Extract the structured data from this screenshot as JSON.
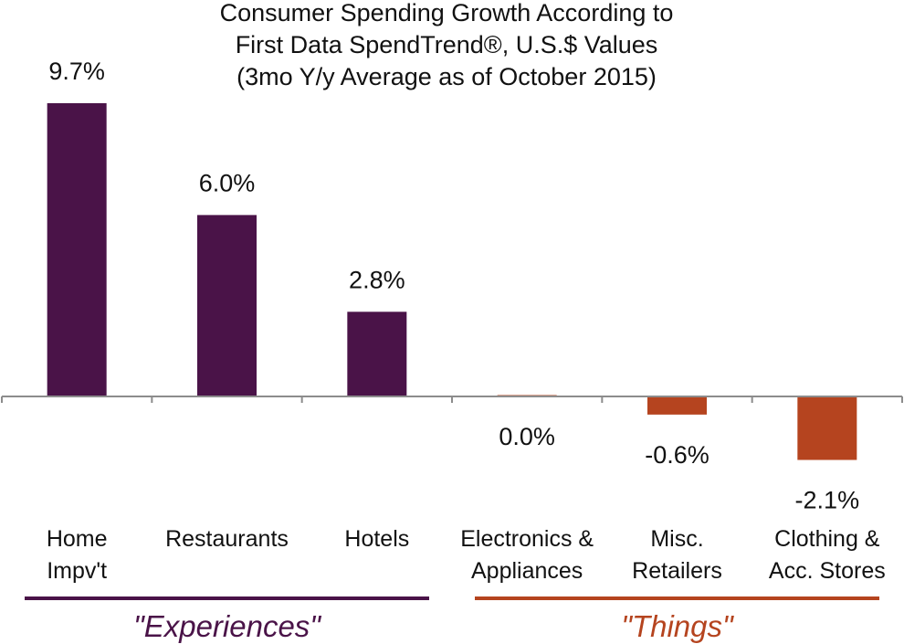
{
  "chart_data": {
    "type": "bar",
    "title_lines": [
      "Consumer Spending Growth According to",
      "First Data SpendTrend®, U.S.$ Values",
      "(3mo Y/y Average as of October 2015)"
    ],
    "categories": [
      [
        "Home",
        "Impv't"
      ],
      [
        "Restaurants"
      ],
      [
        "Hotels"
      ],
      [
        "Electronics &",
        "Appliances"
      ],
      [
        "Misc.",
        "Retailers"
      ],
      [
        "Clothing &",
        "Acc. Stores"
      ]
    ],
    "values": [
      9.7,
      6.0,
      2.8,
      0.0,
      -0.6,
      -2.1
    ],
    "value_labels": [
      "9.7%",
      "6.0%",
      "2.8%",
      "0.0%",
      "-0.6%",
      "-2.1%"
    ],
    "bar_colors": [
      "#4a1348",
      "#4a1348",
      "#4a1348",
      "#b5441f",
      "#b5441f",
      "#b5441f"
    ],
    "groups": [
      {
        "label": "\"Experiences\"",
        "color": "#4a1348",
        "first": 0,
        "last": 2
      },
      {
        "label": "\"Things\"",
        "color": "#b5441f",
        "first": 3,
        "last": 5
      }
    ],
    "xlabel": "",
    "ylabel": "",
    "grid": false
  }
}
